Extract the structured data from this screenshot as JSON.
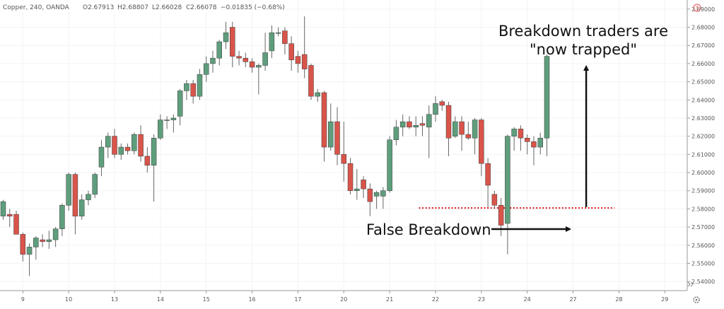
{
  "header": {
    "symbol": "Copper, 240, OANDA",
    "open": "O2.67913",
    "high": "H2.68807",
    "low": "L2.66028",
    "close": "C2.66078",
    "change": "−0.01835 (−0.68%)"
  },
  "colors": {
    "up": "#5e9e7c",
    "down": "#d9544a",
    "wick": "#666666",
    "support_line": "#e0282c",
    "annotation": "#111111"
  },
  "icons": {
    "alert": "alert-circle-icon",
    "gear": "gear-icon",
    "scroll": "scroll-right-icon"
  },
  "chart_data": {
    "type": "candlestick",
    "symbol": "Copper",
    "timeframe": "240",
    "source": "OANDA",
    "ylim": [
      2.535,
      2.695
    ],
    "y_ticks": [
      "2.54000",
      "2.55000",
      "2.56000",
      "2.57000",
      "2.58000",
      "2.59000",
      "2.60000",
      "2.61000",
      "2.62000",
      "2.63000",
      "2.64000",
      "2.65000",
      "2.66000",
      "2.67000",
      "2.68000",
      "2.69000"
    ],
    "x_ticks": [
      {
        "label": "9",
        "i": 3
      },
      {
        "label": "10",
        "i": 10
      },
      {
        "label": "13",
        "i": 17
      },
      {
        "label": "14",
        "i": 24
      },
      {
        "label": "15",
        "i": 31
      },
      {
        "label": "16",
        "i": 38
      },
      {
        "label": "17",
        "i": 45
      },
      {
        "label": "20",
        "i": 52
      },
      {
        "label": "21",
        "i": 59
      },
      {
        "label": "22",
        "i": 66
      },
      {
        "label": "23",
        "i": 73
      },
      {
        "label": "24",
        "i": 80
      },
      {
        "label": "27",
        "i": 87
      },
      {
        "label": "28",
        "i": 94
      },
      {
        "label": "29",
        "i": 101
      }
    ],
    "candles": [
      [
        2.576,
        2.585,
        2.574,
        2.584
      ],
      [
        2.577,
        2.58,
        2.57,
        2.576
      ],
      [
        2.577,
        2.579,
        2.566,
        2.566
      ],
      [
        2.566,
        2.567,
        2.551,
        2.555
      ],
      [
        2.555,
        2.561,
        2.543,
        2.559
      ],
      [
        2.559,
        2.565,
        2.552,
        2.564
      ],
      [
        2.563,
        2.566,
        2.559,
        2.562
      ],
      [
        2.562,
        2.568,
        2.558,
        2.563
      ],
      [
        2.563,
        2.57,
        2.559,
        2.569
      ],
      [
        2.569,
        2.583,
        2.565,
        2.582
      ],
      [
        2.582,
        2.6,
        2.579,
        2.599
      ],
      [
        2.599,
        2.6,
        2.566,
        2.576
      ],
      [
        2.576,
        2.588,
        2.574,
        2.585
      ],
      [
        2.585,
        2.59,
        2.582,
        2.588
      ],
      [
        2.588,
        2.6,
        2.586,
        2.599
      ],
      [
        2.603,
        2.618,
        2.598,
        2.614
      ],
      [
        2.614,
        2.622,
        2.608,
        2.62
      ],
      [
        2.62,
        2.624,
        2.608,
        2.61
      ],
      [
        2.61,
        2.616,
        2.607,
        2.614
      ],
      [
        2.614,
        2.616,
        2.61,
        2.612
      ],
      [
        2.612,
        2.622,
        2.61,
        2.621
      ],
      [
        2.621,
        2.626,
        2.606,
        2.609
      ],
      [
        2.609,
        2.614,
        2.6,
        2.604
      ],
      [
        2.604,
        2.621,
        2.584,
        2.619
      ],
      [
        2.619,
        2.632,
        2.618,
        2.629
      ],
      [
        2.629,
        2.631,
        2.624,
        2.629
      ],
      [
        2.629,
        2.632,
        2.622,
        2.63
      ],
      [
        2.631,
        2.646,
        2.626,
        2.645
      ],
      [
        2.645,
        2.651,
        2.64,
        2.649
      ],
      [
        2.649,
        2.651,
        2.638,
        2.642
      ],
      [
        2.642,
        2.657,
        2.64,
        2.654
      ],
      [
        2.654,
        2.664,
        2.65,
        2.66
      ],
      [
        2.66,
        2.667,
        2.655,
        2.663
      ],
      [
        2.663,
        2.673,
        2.659,
        2.672
      ],
      [
        2.672,
        2.683,
        2.668,
        2.677
      ],
      [
        2.68,
        2.683,
        2.658,
        2.664
      ],
      [
        2.664,
        2.667,
        2.659,
        2.663
      ],
      [
        2.663,
        2.666,
        2.658,
        2.661
      ],
      [
        2.661,
        2.663,
        2.655,
        2.658
      ],
      [
        2.658,
        2.66,
        2.643,
        2.659
      ],
      [
        2.659,
        2.677,
        2.656,
        2.666
      ],
      [
        2.667,
        2.681,
        2.663,
        2.677
      ],
      [
        2.677,
        2.68,
        2.675,
        2.677
      ],
      [
        2.678,
        2.68,
        2.665,
        2.671
      ],
      [
        2.671,
        2.675,
        2.656,
        2.662
      ],
      [
        2.664,
        2.667,
        2.655,
        2.66
      ],
      [
        2.665,
        2.686,
        2.652,
        2.657
      ],
      [
        2.659,
        2.66,
        2.64,
        2.642
      ],
      [
        2.642,
        2.646,
        2.639,
        2.644
      ],
      [
        2.644,
        2.645,
        2.606,
        2.614
      ],
      [
        2.614,
        2.638,
        2.612,
        2.628
      ],
      [
        2.628,
        2.636,
        2.604,
        2.61
      ],
      [
        2.61,
        2.628,
        2.595,
        2.605
      ],
      [
        2.605,
        2.608,
        2.588,
        2.59
      ],
      [
        2.59,
        2.602,
        2.585,
        2.591
      ],
      [
        2.596,
        2.598,
        2.586,
        2.591
      ],
      [
        2.591,
        2.594,
        2.576,
        2.584
      ],
      [
        2.587,
        2.59,
        2.58,
        2.589
      ],
      [
        2.587,
        2.592,
        2.58,
        2.59
      ],
      [
        2.59,
        2.62,
        2.589,
        2.618
      ],
      [
        2.618,
        2.629,
        2.615,
        2.625
      ],
      [
        2.625,
        2.632,
        2.62,
        2.628
      ],
      [
        2.628,
        2.631,
        2.624,
        2.625
      ],
      [
        2.625,
        2.631,
        2.62,
        2.626
      ],
      [
        2.627,
        2.631,
        2.62,
        2.626
      ],
      [
        2.625,
        2.637,
        2.608,
        2.632
      ],
      [
        2.632,
        2.642,
        2.628,
        2.638
      ],
      [
        2.639,
        2.64,
        2.634,
        2.637
      ],
      [
        2.637,
        2.639,
        2.609,
        2.619
      ],
      [
        2.62,
        2.631,
        2.619,
        2.628
      ],
      [
        2.628,
        2.631,
        2.612,
        2.621
      ],
      [
        2.621,
        2.628,
        2.618,
        2.619
      ],
      [
        2.619,
        2.63,
        2.61,
        2.629
      ],
      [
        2.629,
        2.63,
        2.598,
        2.605
      ],
      [
        2.605,
        2.608,
        2.581,
        2.593
      ],
      [
        2.588,
        2.59,
        2.58,
        2.582
      ],
      [
        2.582,
        2.586,
        2.565,
        2.571
      ],
      [
        2.572,
        2.621,
        2.555,
        2.62
      ],
      [
        2.62,
        2.625,
        2.612,
        2.624
      ],
      [
        2.624,
        2.626,
        2.612,
        2.619
      ],
      [
        2.619,
        2.621,
        2.61,
        2.617
      ],
      [
        2.617,
        2.62,
        2.604,
        2.614
      ],
      [
        2.614,
        2.622,
        2.61,
        2.619
      ],
      [
        2.619,
        2.665,
        2.609,
        2.664
      ]
    ],
    "support_level": 2.5805,
    "annotations": [
      {
        "lines": [
          "Breakdown traders are",
          "\"now trapped\""
        ]
      },
      {
        "lines": [
          "False Breakdown"
        ]
      }
    ]
  }
}
